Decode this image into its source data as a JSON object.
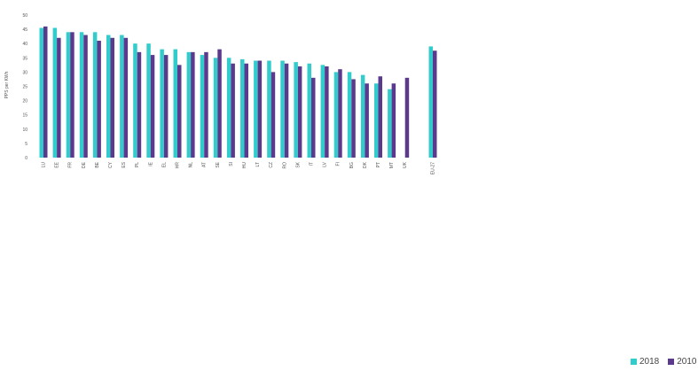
{
  "chart_data": {
    "type": "bar",
    "ylabel": "PPS per KWh",
    "ylim": [
      0,
      50
    ],
    "yticks": [
      0,
      5,
      10,
      15,
      20,
      25,
      30,
      35,
      40,
      45,
      50
    ],
    "categories": [
      "LU",
      "EE",
      "FR",
      "DE",
      "BE",
      "CY",
      "ES",
      "PL",
      "IE",
      "EL",
      "HR",
      "NL",
      "AT",
      "SE",
      "SI",
      "HU",
      "LT",
      "CZ",
      "RO",
      "SK",
      "IT",
      "LV",
      "FI",
      "BG",
      "DK",
      "PT",
      "MT",
      "UK",
      "EU-27"
    ],
    "series": [
      {
        "name": "2018",
        "color": "#33cccc",
        "values": [
          45.5,
          45.5,
          44,
          44,
          44,
          43,
          43,
          40,
          40,
          38,
          38,
          37,
          36,
          35,
          35,
          34.5,
          34,
          34,
          34,
          33.5,
          33,
          32.5,
          30,
          30,
          29,
          26,
          24,
          null,
          39
        ]
      },
      {
        "name": "2010",
        "color": "#5b3a8e",
        "values": [
          46,
          42,
          44,
          43,
          41,
          42,
          42,
          37,
          36,
          36,
          32.5,
          37,
          37,
          38,
          33,
          33,
          34,
          30,
          33,
          32,
          28,
          32,
          31,
          27.5,
          26,
          28.5,
          26,
          28,
          37.5
        ]
      }
    ],
    "legend_position": "bottom-right",
    "grid": false
  }
}
